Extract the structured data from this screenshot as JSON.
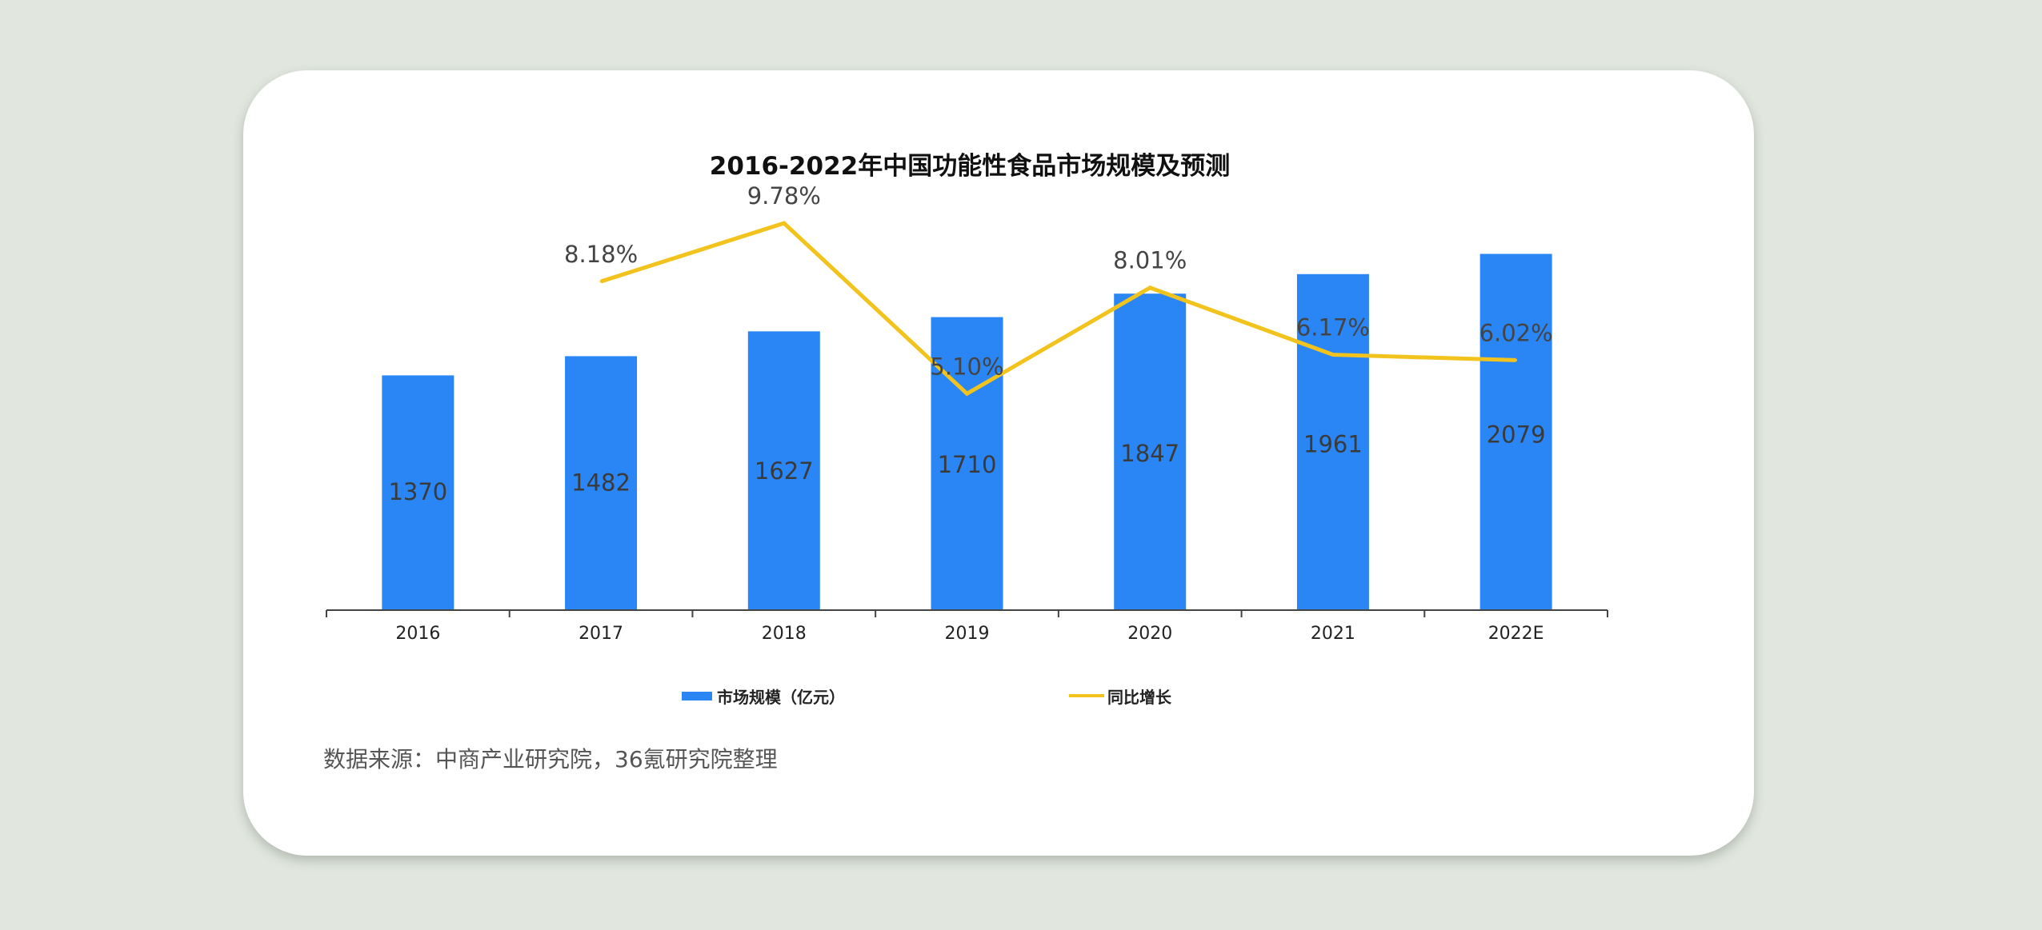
{
  "chart_data": {
    "type": "bar",
    "title": "2016-2022年中国功能性食品市场规模及预测",
    "categories": [
      "2016",
      "2017",
      "2018",
      "2019",
      "2020",
      "2021",
      "2022E"
    ],
    "series": [
      {
        "name": "市场规模（亿元）",
        "type": "bar",
        "values": [
          1370,
          1482,
          1627,
          1710,
          1847,
          1961,
          2079
        ],
        "labels": [
          "1370",
          "1482",
          "1627",
          "1710",
          "1847",
          "1961",
          "2079"
        ],
        "color": "#2a86f5"
      },
      {
        "name": "同比增长",
        "type": "line",
        "x": [
          "2017",
          "2018",
          "2019",
          "2020",
          "2021",
          "2022E"
        ],
        "values": [
          8.18,
          9.78,
          5.1,
          8.01,
          6.17,
          6.02
        ],
        "labels": [
          "8.18%",
          "9.78%",
          "5.10%",
          "8.01%",
          "6.17%",
          "6.02%"
        ],
        "color": "#f2c31c"
      }
    ],
    "ylim": [
      0,
      2100
    ],
    "y2lim": [
      3.0,
      11.0
    ],
    "grid": false,
    "legend": "bottom"
  },
  "footer": {
    "source": "数据来源：中商产业研究院，36氪研究院整理"
  }
}
